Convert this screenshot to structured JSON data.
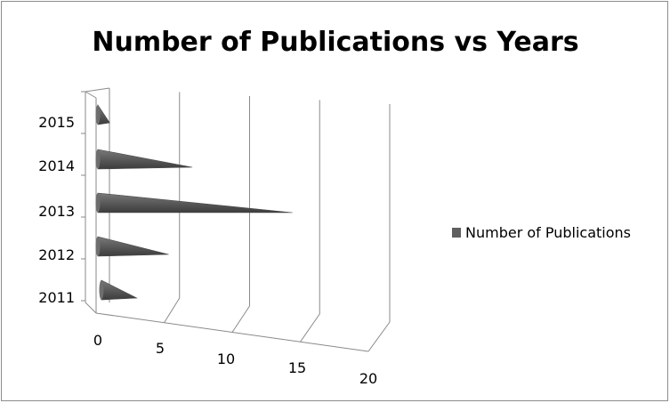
{
  "chart_data": {
    "type": "bar",
    "orientation": "horizontal",
    "style": "3d-cone",
    "title": "Number of Publications vs Years",
    "categories": [
      "2011",
      "2012",
      "2013",
      "2014",
      "2015"
    ],
    "series": [
      {
        "name": "Number of Publications",
        "values": [
          3,
          6,
          17,
          8,
          1
        ]
      }
    ],
    "x_ticks": [
      "0",
      "5",
      "10",
      "15",
      "20"
    ],
    "xlim": [
      0,
      20
    ],
    "xlabel": "",
    "ylabel": "",
    "grid": true,
    "legend": "right",
    "colors": {
      "bar": "#5f5f5f",
      "grid": "#8a8a8a"
    }
  }
}
